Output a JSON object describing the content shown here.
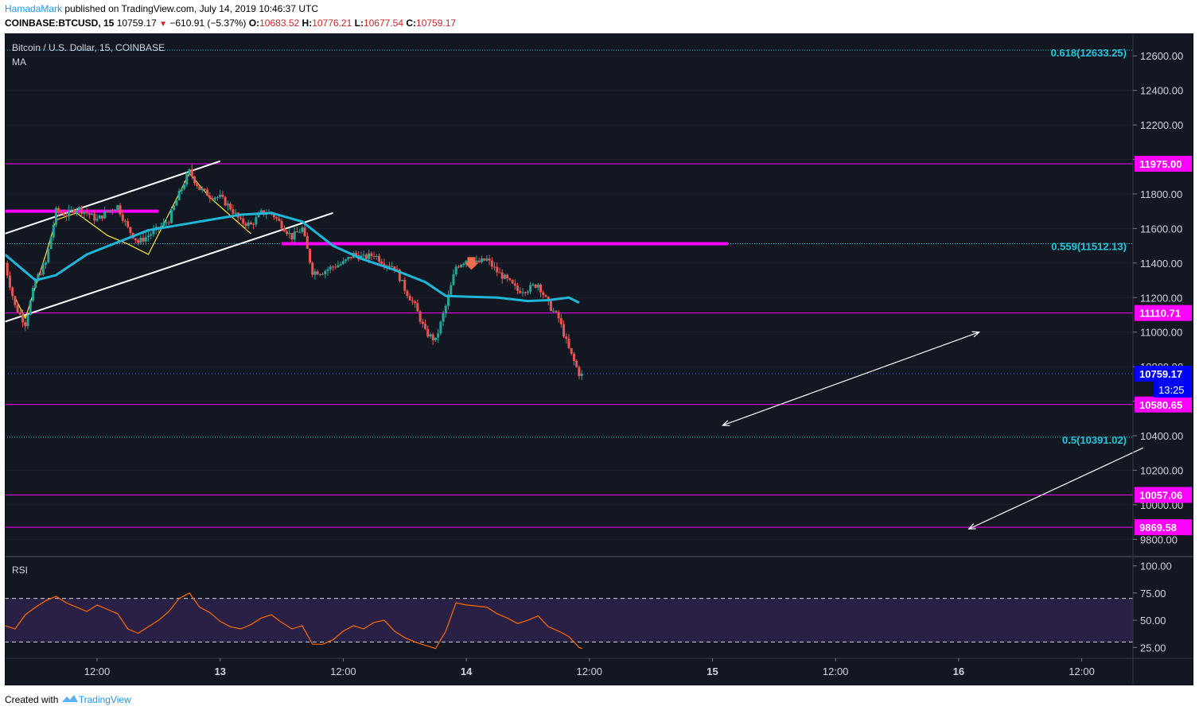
{
  "header": {
    "author": "HamadaMark",
    "published_text": "published on TradingView.com, July 14, 2019 10:46:37 UTC",
    "symbol": "COINBASE:BTCUSD, 15",
    "last": "10759.17",
    "change": "−610.91 (−5.37%)",
    "o_label": "O:",
    "o_value": "10683.52",
    "h_label": "H:",
    "h_value": "10776.21",
    "l_label": "L:",
    "l_value": "10677.54",
    "c_label": "C:",
    "c_value": "10759.17"
  },
  "legend": {
    "title": "Bitcoin / U.S. Dollar, 15, COINBASE",
    "indicator": "MA",
    "rsi_title": "RSI"
  },
  "footer": {
    "created_with": "Created with",
    "brand": "TradingView"
  },
  "colors": {
    "background": "#131722",
    "panel_border": "#363a45",
    "magenta": "#ff00ff",
    "fib_cyan": "#26c6da",
    "ma_line": "#1eb7d8",
    "channel": "#ffffff",
    "zigzag": "#ffeb3b",
    "rsi_line": "#ff6d00",
    "rsi_band": "#2a1f45",
    "up_candle": "#26a69a",
    "down_candle": "#ef5350",
    "price_label_bg": "#0000ff"
  },
  "chart_data": [
    {
      "type": "candlestick",
      "title": "Bitcoin / U.S. Dollar, 15, COINBASE",
      "ylim": [
        9700,
        12730
      ],
      "y_ticks": [
        "12600.00",
        "12400.00",
        "12200.00",
        "12000.00",
        "11800.00",
        "11600.00",
        "11400.00",
        "11200.00",
        "11000.00",
        "10800.00",
        "10600.00",
        "10400.00",
        "10200.00",
        "10000.00",
        "9800.00"
      ],
      "x_ticks": [
        "12:00",
        "13",
        "12:00",
        "14",
        "12:00",
        "15",
        "12:00",
        "16",
        "12:00"
      ],
      "x_tick_hours": [
        12,
        24,
        36,
        48,
        60,
        72,
        84,
        96,
        108
      ],
      "x_range_hours": [
        3,
        113
      ],
      "price_path": [
        [
          3,
          11400
        ],
        [
          4,
          11150
        ],
        [
          5,
          11050
        ],
        [
          6,
          11300
        ],
        [
          7,
          11400
        ],
        [
          8,
          11700
        ],
        [
          9,
          11680
        ],
        [
          10,
          11720
        ],
        [
          11,
          11690
        ],
        [
          12,
          11650
        ],
        [
          13,
          11700
        ],
        [
          14,
          11730
        ],
        [
          15,
          11600
        ],
        [
          16,
          11520
        ],
        [
          17,
          11560
        ],
        [
          18,
          11600
        ],
        [
          19,
          11650
        ],
        [
          20,
          11800
        ],
        [
          21,
          11930
        ],
        [
          22,
          11830
        ],
        [
          23,
          11790
        ],
        [
          24,
          11780
        ],
        [
          25,
          11720
        ],
        [
          26,
          11640
        ],
        [
          27,
          11620
        ],
        [
          28,
          11690
        ],
        [
          29,
          11690
        ],
        [
          30,
          11620
        ],
        [
          31,
          11550
        ],
        [
          32,
          11600
        ],
        [
          33,
          11350
        ],
        [
          34,
          11350
        ],
        [
          35,
          11380
        ],
        [
          36,
          11400
        ],
        [
          37,
          11450
        ],
        [
          38,
          11430
        ],
        [
          39,
          11450
        ],
        [
          40,
          11400
        ],
        [
          41,
          11380
        ],
        [
          42,
          11250
        ],
        [
          43,
          11150
        ],
        [
          44,
          11000
        ],
        [
          45,
          10950
        ],
        [
          46,
          11150
        ],
        [
          47,
          11380
        ],
        [
          48,
          11420
        ],
        [
          49,
          11400
        ],
        [
          50,
          11420
        ],
        [
          51,
          11350
        ],
        [
          52,
          11300
        ],
        [
          53,
          11240
        ],
        [
          54,
          11250
        ],
        [
          55,
          11280
        ],
        [
          56,
          11160
        ],
        [
          57,
          11080
        ],
        [
          58,
          10900
        ],
        [
          59,
          10760
        ],
        [
          59.3,
          10759
        ]
      ],
      "ma_path": [
        [
          3,
          11450
        ],
        [
          5,
          11350
        ],
        [
          6,
          11300
        ],
        [
          8,
          11330
        ],
        [
          11,
          11450
        ],
        [
          14,
          11520
        ],
        [
          17,
          11590
        ],
        [
          20,
          11620
        ],
        [
          23,
          11650
        ],
        [
          26,
          11680
        ],
        [
          29,
          11690
        ],
        [
          32,
          11640
        ],
        [
          35,
          11500
        ],
        [
          38,
          11420
        ],
        [
          41,
          11360
        ],
        [
          44,
          11290
        ],
        [
          46,
          11210
        ],
        [
          48,
          11205
        ],
        [
          51,
          11200
        ],
        [
          54,
          11180
        ],
        [
          56,
          11185
        ],
        [
          58,
          11200
        ],
        [
          59,
          11170
        ]
      ],
      "signal_arrow": {
        "hour": 48.5,
        "price": 11370
      },
      "horizontal_levels": [
        {
          "value": 11975.0,
          "label": "11975.00",
          "kind": "support"
        },
        {
          "value": 11110.71,
          "label": "11110.71",
          "kind": "support"
        },
        {
          "value": 10580.65,
          "label": "10580.65",
          "kind": "support"
        },
        {
          "value": 10057.06,
          "label": "10057.06",
          "kind": "support"
        },
        {
          "value": 9869.58,
          "label": "9869.58",
          "kind": "support"
        }
      ],
      "fib_levels": [
        {
          "value": 12633.25,
          "label": "0.618(12633.25)"
        },
        {
          "value": 11512.13,
          "label": "0.559(11512.13)"
        },
        {
          "value": 10391.02,
          "label": "0.5(10391.02)"
        }
      ],
      "resistance_segments": [
        {
          "value": 11700,
          "from_hour": 3,
          "to_hour": 18
        },
        {
          "value": 11512.13,
          "from_hour": 30,
          "to_hour": 73.5
        }
      ],
      "channel_lines": [
        {
          "from": [
            3,
            11570
          ],
          "to": [
            24,
            11990
          ]
        },
        {
          "from": [
            3,
            11060
          ],
          "to": [
            35,
            11690
          ]
        }
      ],
      "zigzag": [
        [
          4,
          11200
        ],
        [
          5,
          11080
        ],
        [
          7,
          11450
        ],
        [
          8,
          11650
        ],
        [
          10,
          11690
        ],
        [
          13,
          11560
        ],
        [
          15,
          11510
        ],
        [
          17,
          11450
        ],
        [
          21,
          11920
        ],
        [
          23,
          11780
        ],
        [
          27,
          11570
        ]
      ],
      "arrows": [
        {
          "from": [
            73,
            10460
          ],
          "to": [
            98,
            11000
          ],
          "two_headed": true
        },
        {
          "from": [
            114,
            10330
          ],
          "to": [
            97,
            9860
          ],
          "two_headed": false
        }
      ],
      "current_price": {
        "value": 10759.17,
        "label": "10759.17",
        "countdown": "13:25"
      },
      "last_close": 10759.17
    },
    {
      "type": "line",
      "title": "RSI",
      "ylim": [
        15,
        107
      ],
      "y_ticks": [
        "100.00",
        "75.00",
        "50.00",
        "25.00"
      ],
      "bands": [
        30,
        70
      ],
      "x": [
        3,
        4,
        5,
        6,
        7,
        8,
        9,
        10,
        11,
        12,
        13,
        14,
        15,
        16,
        17,
        18,
        19,
        20,
        21,
        22,
        23,
        24,
        25,
        26,
        27,
        28,
        29,
        30,
        31,
        32,
        33,
        34,
        35,
        36,
        37,
        38,
        39,
        40,
        41,
        42,
        43,
        44,
        45,
        46,
        47,
        48,
        49,
        50,
        51,
        52,
        53,
        54,
        55,
        56,
        57,
        58,
        59,
        59.3
      ],
      "values": [
        45,
        42,
        55,
        62,
        68,
        72,
        66,
        62,
        58,
        64,
        60,
        56,
        42,
        38,
        44,
        50,
        58,
        70,
        75,
        62,
        57,
        49,
        44,
        42,
        46,
        52,
        55,
        48,
        42,
        45,
        28,
        28,
        32,
        40,
        45,
        42,
        48,
        50,
        40,
        34,
        30,
        27,
        24,
        40,
        66,
        64,
        63,
        62,
        56,
        52,
        47,
        50,
        54,
        44,
        40,
        35,
        25,
        24
      ]
    }
  ]
}
